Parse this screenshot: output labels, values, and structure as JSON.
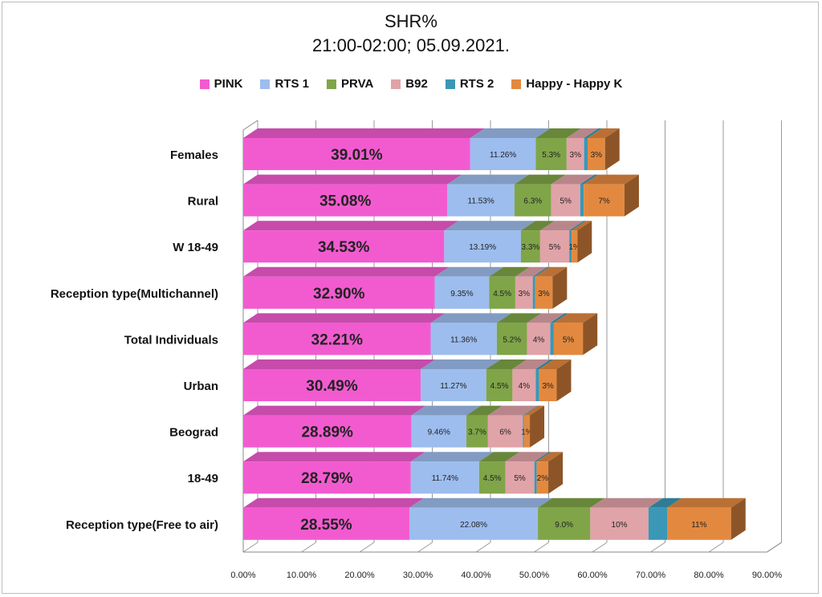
{
  "chart_data": {
    "type": "bar",
    "orientation": "horizontal",
    "stacked": true,
    "title": "SHR%",
    "subtitle": "21:00-02:00; 05.09.2021.",
    "legend_position": "top",
    "grid": true,
    "xlim": [
      0,
      90
    ],
    "x_ticks": [
      "0.00%",
      "10.00%",
      "20.00%",
      "30.00%",
      "40.00%",
      "50.00%",
      "60.00%",
      "70.00%",
      "80.00%",
      "90.00%"
    ],
    "categories": [
      "Females",
      "Rural",
      "W 18-49",
      "Reception type(Multichannel)",
      "Total Individuals",
      "Urban",
      "Beograd",
      "18-49",
      "Reception type(Free to air)"
    ],
    "series": [
      {
        "name": "PINK",
        "color": "#f25bd0",
        "values": [
          39.01,
          35.08,
          34.53,
          32.9,
          32.21,
          30.49,
          28.89,
          28.79,
          28.55
        ],
        "labels": [
          "39.01%",
          "35.08%",
          "34.53%",
          "32.90%",
          "32.21%",
          "30.49%",
          "28.89%",
          "28.79%",
          "28.55%"
        ]
      },
      {
        "name": "RTS 1",
        "color": "#9dbdee",
        "values": [
          11.26,
          11.53,
          13.19,
          9.35,
          11.36,
          11.27,
          9.46,
          11.74,
          22.08
        ],
        "labels": [
          "11.26%",
          "11.53%",
          "13.19%",
          "9.35%",
          "11.36%",
          "11.27%",
          "9.46%",
          "11.74%",
          "22.08%"
        ]
      },
      {
        "name": "PRVA",
        "color": "#7fa548",
        "values": [
          5.3,
          6.3,
          3.3,
          4.5,
          5.2,
          4.5,
          3.7,
          4.5,
          9.0
        ],
        "labels": [
          "5.3%",
          "6.3%",
          "3.3%",
          "4.5%",
          "5.2%",
          "4.5%",
          "3.7%",
          "4.5%",
          "9.0%"
        ]
      },
      {
        "name": "B92",
        "color": "#e0a3a8",
        "values": [
          3,
          5,
          5,
          3,
          4,
          4,
          6,
          5,
          10
        ],
        "labels": [
          "3%",
          "5%",
          "5%",
          "3%",
          "4%",
          "4%",
          "6%",
          "5%",
          "10%"
        ]
      },
      {
        "name": "RTS 2",
        "color": "#3a97b5",
        "values": [
          0.6,
          0.6,
          0.4,
          0.4,
          0.6,
          0.6,
          0.2,
          0.4,
          3.2
        ],
        "labels": [
          "",
          "",
          "",
          "",
          "",
          "",
          "",
          "",
          ""
        ]
      },
      {
        "name": "Happy - Happy K",
        "color": "#e3893f",
        "values": [
          3,
          7,
          1,
          3,
          5,
          3,
          1,
          2,
          11
        ],
        "labels": [
          "3%",
          "7%",
          "1%",
          "3%",
          "5%",
          "3%",
          "1%",
          "2%",
          "11%"
        ]
      }
    ]
  }
}
